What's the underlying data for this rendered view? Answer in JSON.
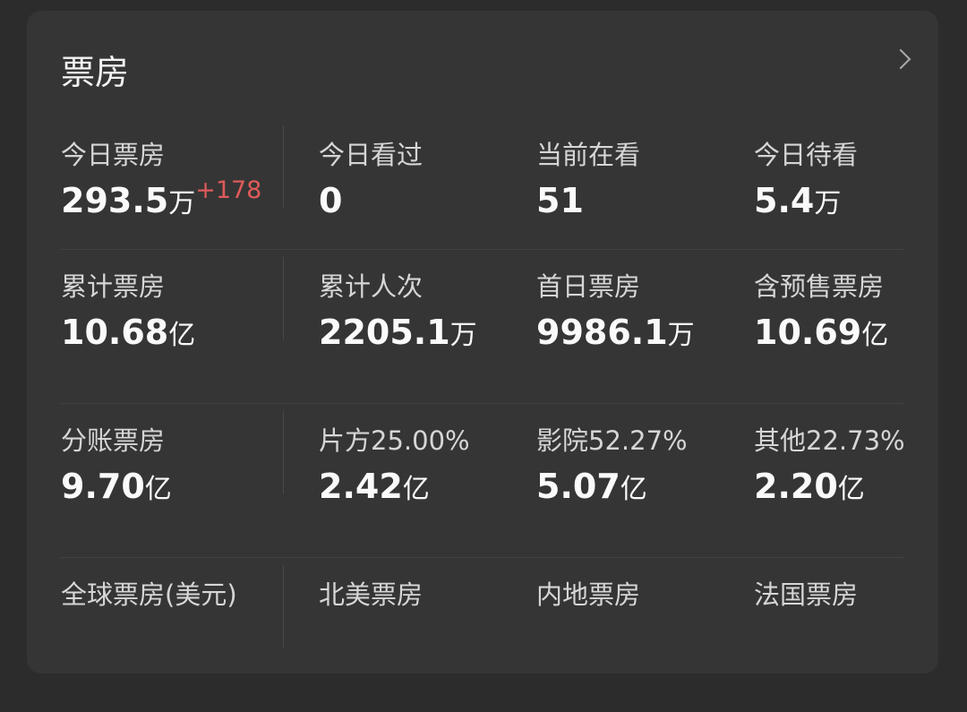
{
  "title": "票房",
  "chevron_icon": "chevron-right-icon",
  "colors": {
    "delta": "#e05a5a"
  },
  "rows": [
    {
      "cells": [
        {
          "label": "今日票房",
          "value": "293.5",
          "unit": "万",
          "delta": "+178"
        },
        {
          "label": "今日看过",
          "value": "0",
          "unit": ""
        },
        {
          "label": "当前在看",
          "value": "51",
          "unit": ""
        },
        {
          "label": "今日待看",
          "value": "5.4",
          "unit": "万"
        }
      ]
    },
    {
      "cells": [
        {
          "label": "累计票房",
          "value": "10.68",
          "unit": "亿"
        },
        {
          "label": "累计人次",
          "value": "2205.1",
          "unit": "万"
        },
        {
          "label": "首日票房",
          "value": "9986.1",
          "unit": "万"
        },
        {
          "label": "含预售票房",
          "value": "10.69",
          "unit": "亿"
        }
      ]
    },
    {
      "cells": [
        {
          "label": "分账票房",
          "value": "9.70",
          "unit": "亿"
        },
        {
          "label": "片方25.00%",
          "value": "2.42",
          "unit": "亿"
        },
        {
          "label": "影院52.27%",
          "value": "5.07",
          "unit": "亿"
        },
        {
          "label": "其他22.73%",
          "value": "2.20",
          "unit": "亿"
        }
      ]
    },
    {
      "cells": [
        {
          "label": "全球票房(美元)"
        },
        {
          "label": "北美票房"
        },
        {
          "label": "内地票房"
        },
        {
          "label": "法国票房"
        }
      ]
    }
  ]
}
